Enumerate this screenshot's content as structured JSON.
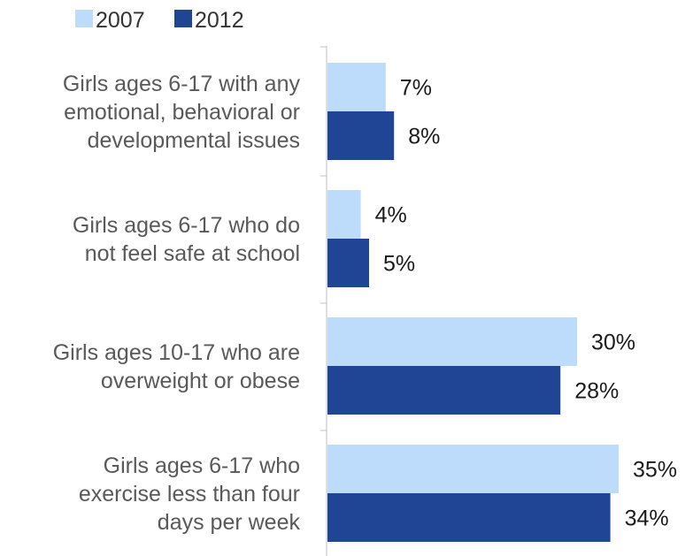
{
  "chart_data": {
    "type": "bar",
    "orientation": "horizontal",
    "title": "",
    "xlabel": "",
    "ylabel": "",
    "xlim": [
      0,
      40
    ],
    "grid": false,
    "legend_position": "top-left",
    "categories": [
      [
        "Girls ages 6-17 with any",
        "emotional, behavioral or",
        "developmental issues"
      ],
      [
        "Girls ages 6-17 who do",
        "not feel safe at school"
      ],
      [
        "Girls ages 10-17 who are",
        "overweight or obese"
      ],
      [
        "Girls ages 6-17 who",
        "exercise less than four",
        "days per week"
      ]
    ],
    "series": [
      {
        "name": "2007",
        "color": "#bddcfb",
        "values": [
          7,
          4,
          30,
          35
        ],
        "labels": [
          "7%",
          "4%",
          "30%",
          "35%"
        ]
      },
      {
        "name": "2012",
        "color": "#1f4594",
        "values": [
          8,
          5,
          28,
          34
        ],
        "labels": [
          "8%",
          "5%",
          "28%",
          "34%"
        ]
      }
    ]
  }
}
